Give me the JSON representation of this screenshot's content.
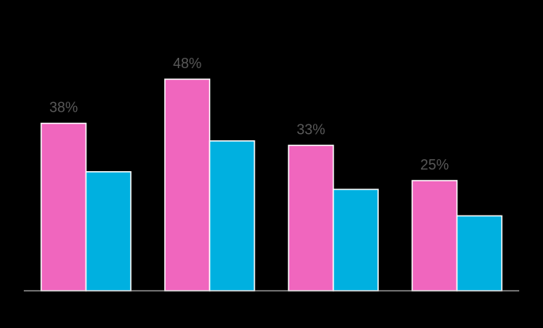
{
  "chart_data": {
    "type": "bar",
    "categories": [
      null,
      null,
      null,
      null
    ],
    "series": [
      {
        "color": "#f066be",
        "values": [
          38,
          48,
          33,
          25
        ],
        "value_labels": [
          "38%",
          "48%",
          "33%",
          "25%"
        ]
      },
      {
        "color": "#00b0e0",
        "values": [
          27,
          34,
          23,
          17
        ]
      }
    ]
  }
}
